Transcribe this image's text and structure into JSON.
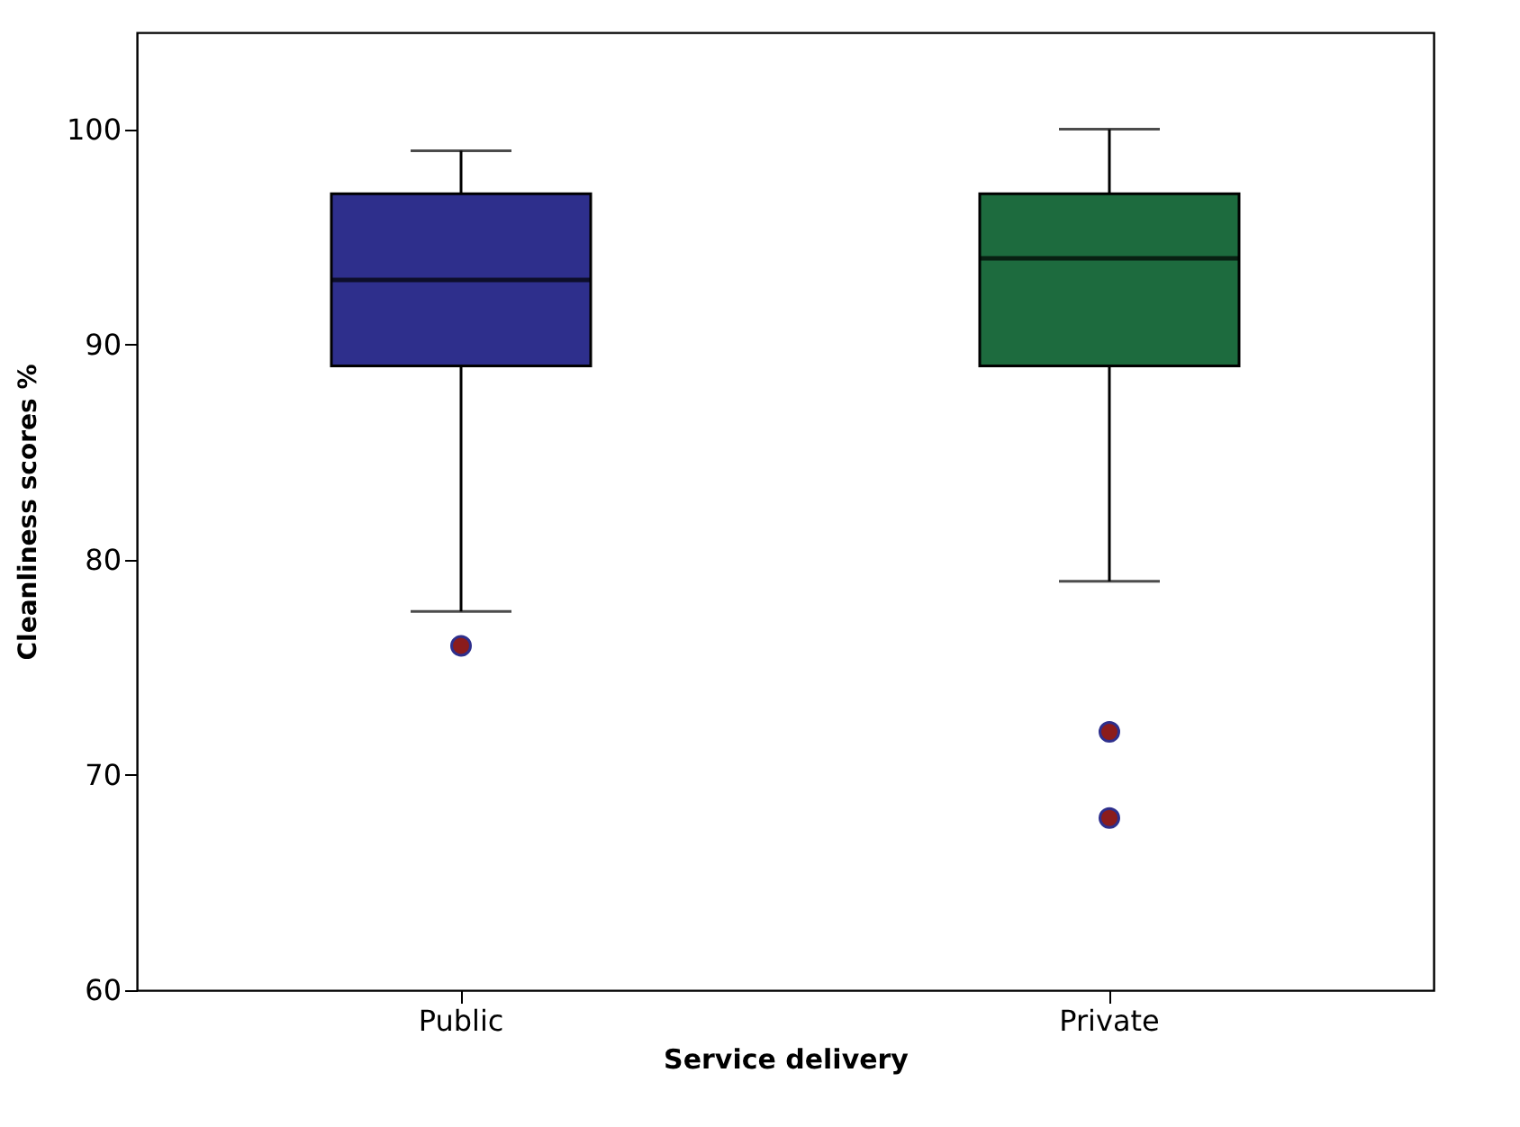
{
  "chart_data": {
    "type": "box",
    "xlabel": "Service delivery",
    "ylabel": "Cleanliness scores %",
    "categories": [
      "Public",
      "Private"
    ],
    "boxes": [
      {
        "low": 77.6,
        "q1": 89,
        "median": 93,
        "q3": 97,
        "high": 99,
        "outliers": [
          76
        ]
      },
      {
        "low": 79,
        "q1": 89,
        "median": 94,
        "q3": 97,
        "high": 100,
        "outliers": [
          72,
          68
        ]
      }
    ],
    "colors": [
      "#2e2f8c",
      "#1d6b3e"
    ],
    "ylim": [
      60,
      104.5
    ],
    "yticks": [
      60,
      70,
      80,
      90,
      100
    ],
    "grid": false
  }
}
